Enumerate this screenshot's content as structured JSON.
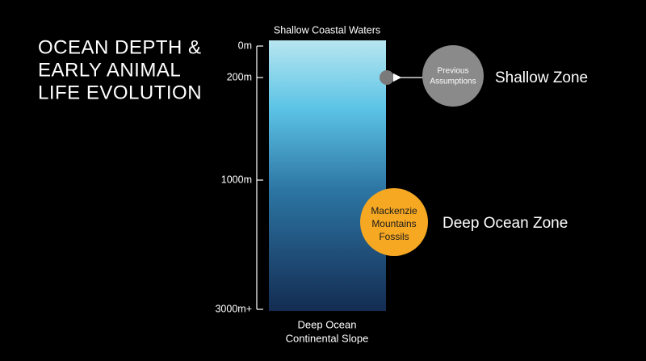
{
  "title": {
    "lines": [
      "OCEAN DEPTH &",
      "EARLY ANIMAL",
      "LIFE EVOLUTION"
    ]
  },
  "column": {
    "top_label": "Shallow Coastal Waters",
    "bottom_label": {
      "lines": [
        "Deep Ocean",
        "Continental Slope"
      ]
    }
  },
  "depth_axis": {
    "labels": [
      "0m",
      "200m",
      "1000m",
      "3000m+"
    ]
  },
  "markers": [
    {
      "label": {
        "lines": [
          "Previous",
          "Assumptions"
        ]
      },
      "zone": "Shallow Zone"
    },
    {
      "label": {
        "lines": [
          "Mackenzie",
          "Mountains",
          "Fossils"
        ]
      },
      "zone": "Deep Ocean Zone"
    }
  ]
}
